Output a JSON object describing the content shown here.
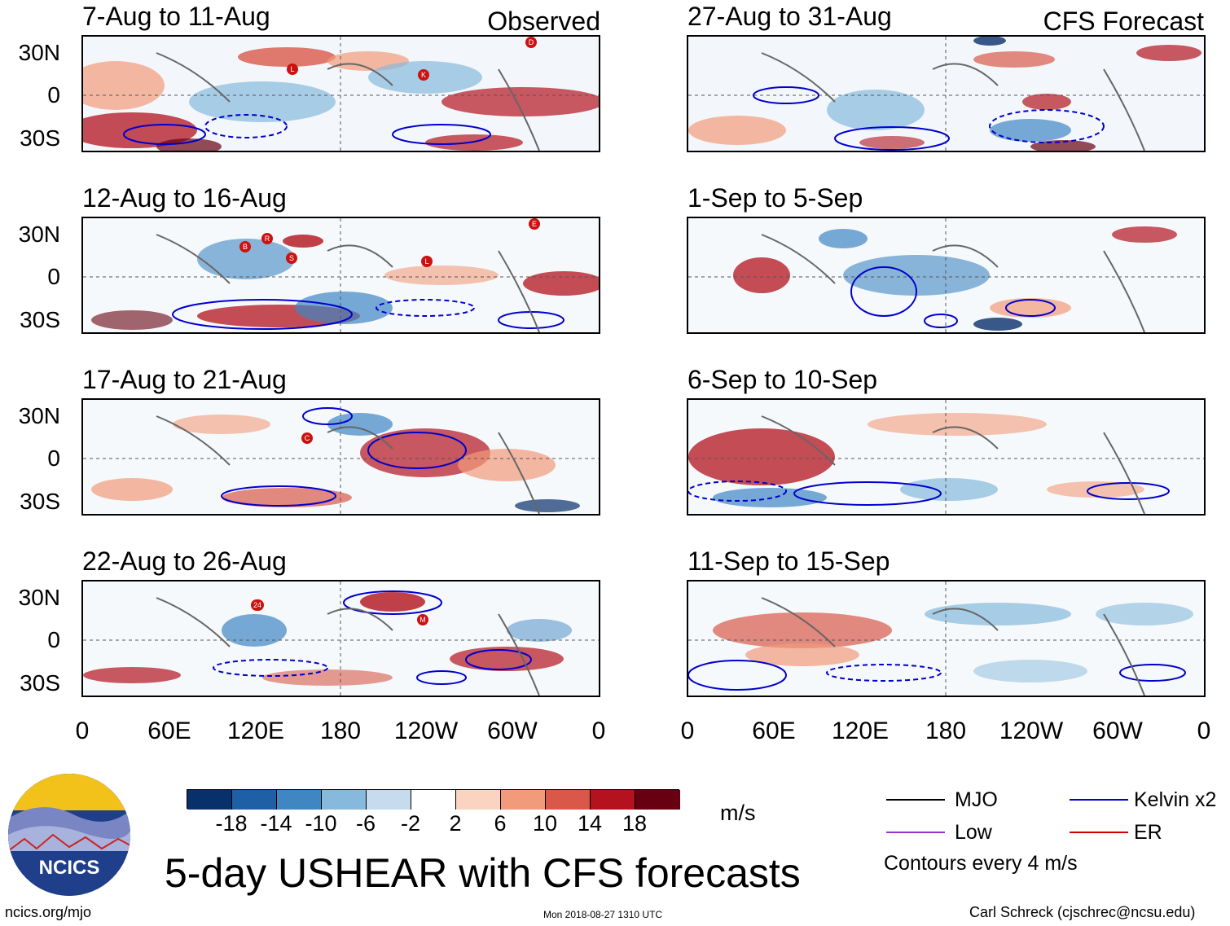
{
  "panels": [
    {
      "title": "7-Aug to 11-Aug",
      "tag": "Observed",
      "storms": [
        "L",
        "K",
        "D"
      ]
    },
    {
      "title": "12-Aug to 16-Aug",
      "tag": "",
      "storms": [
        "B",
        "R",
        "S",
        "L",
        "E"
      ]
    },
    {
      "title": "17-Aug to 21-Aug",
      "tag": "",
      "storms": [
        "C"
      ]
    },
    {
      "title": "22-Aug to 26-Aug",
      "tag": "",
      "storms": [
        "24",
        "M"
      ]
    },
    {
      "title": "27-Aug to 31-Aug",
      "tag": "CFS Forecast",
      "storms": []
    },
    {
      "title": "1-Sep to 5-Sep",
      "tag": "",
      "storms": []
    },
    {
      "title": "6-Sep to 10-Sep",
      "tag": "",
      "storms": []
    },
    {
      "title": "11-Sep to 15-Sep",
      "tag": "",
      "storms": []
    }
  ],
  "lat_labels": [
    "30N",
    "0",
    "30S"
  ],
  "lon_labels": [
    "0",
    "60E",
    "120E",
    "180",
    "120W",
    "60W",
    "0"
  ],
  "colorbar": {
    "labels": [
      "-18",
      "-14",
      "-10",
      "-6",
      "-2",
      "2",
      "6",
      "10",
      "14",
      "18"
    ],
    "colors": [
      "#08306b",
      "#1f5fa6",
      "#3f86c3",
      "#86b9dc",
      "#c6dcee",
      "#ffffff",
      "#fbd3c1",
      "#f29b7a",
      "#d9584a",
      "#b3121e",
      "#670010"
    ],
    "units": "m/s"
  },
  "legend": {
    "items": [
      {
        "label": "MJO",
        "color": "#000000"
      },
      {
        "label": "Kelvin x2",
        "color": "#0000cc"
      },
      {
        "label": "Low",
        "color": "#9933cc"
      },
      {
        "label": "ER",
        "color": "#cc0000"
      }
    ],
    "note": "Contours every 4 m/s"
  },
  "main_title": "5-day USHEAR with CFS forecasts",
  "logo_text": "NCICS",
  "footer": {
    "url": "ncics.org/mjo",
    "timestamp": "Mon 2018-08-27 1310 UTC",
    "credit": "Carl Schreck (cjschrec@ncsu.edu)"
  }
}
